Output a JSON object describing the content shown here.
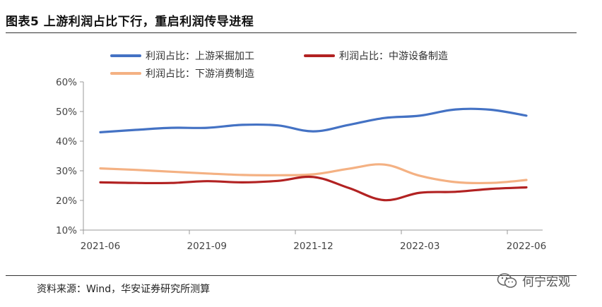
{
  "figure": {
    "title": "图表5 上游利润占比下行，重启利润传导进程",
    "source": "资料来源：Wind，华安证券研究所测算",
    "watermark": "何宁宏观",
    "watermark_icon": "wechat-icon"
  },
  "chart_data": {
    "type": "line",
    "title": "",
    "xlabel": "",
    "ylabel": "",
    "ylim": [
      10,
      60
    ],
    "yticks": [
      "10%",
      "20%",
      "30%",
      "40%",
      "50%",
      "60%"
    ],
    "xticks": [
      "2021-06",
      "2021-09",
      "2021-12",
      "2022-03",
      "2022-06"
    ],
    "x": [
      0,
      1,
      2,
      3,
      4,
      5,
      6,
      7,
      8,
      9,
      10,
      11,
      12
    ],
    "legend_position": "top",
    "series": [
      {
        "name": "利润占比：上游采掘加工",
        "color": "#4472C4",
        "values": [
          43,
          43.8,
          44.5,
          44.5,
          45.5,
          45.3,
          43.3,
          45.5,
          47.8,
          48.6,
          50.7,
          50.6,
          48.6
        ]
      },
      {
        "name": "利润占比：中游设备制造",
        "color": "#B22222",
        "values": [
          26.1,
          25.9,
          25.9,
          26.5,
          26.1,
          26.6,
          27.9,
          24.2,
          20.1,
          22.6,
          22.9,
          23.9,
          24.4
        ]
      },
      {
        "name": "利润占比：下游消费制造",
        "color": "#F4B183",
        "values": [
          30.8,
          30.3,
          29.7,
          29.1,
          28.6,
          28.5,
          28.8,
          30.7,
          32.1,
          28.3,
          26.2,
          25.9,
          26.9
        ]
      }
    ]
  }
}
